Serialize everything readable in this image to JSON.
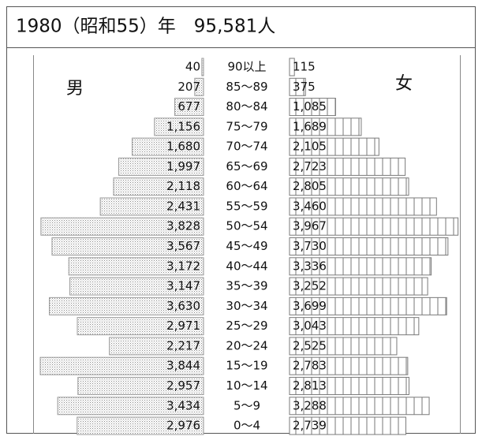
{
  "chart_data": {
    "type": "pyramid",
    "title": "1980（昭和55）年　95,581人",
    "categories": [
      "90以上",
      "85～89",
      "80～84",
      "75～79",
      "70～74",
      "65～69",
      "60～64",
      "55～59",
      "50～54",
      "45～49",
      "40～44",
      "35～39",
      "30～34",
      "25～29",
      "20～24",
      "15～19",
      "10～14",
      "5～9",
      "0～4"
    ],
    "series": [
      {
        "name": "男",
        "color": "#9a9a9a",
        "values": [
          40,
          207,
          677,
          1156,
          1680,
          1997,
          2118,
          2431,
          3828,
          3567,
          3172,
          3147,
          3630,
          2971,
          2217,
          3844,
          2957,
          3434,
          2976
        ],
        "value_labels": [
          "40",
          "207",
          "677",
          "1,156",
          "1,680",
          "1,997",
          "2,118",
          "2,431",
          "3,828",
          "3,567",
          "3,172",
          "3,147",
          "3,630",
          "2,971",
          "2,217",
          "3,844",
          "2,957",
          "3,434",
          "2,976"
        ]
      },
      {
        "name": "女",
        "color": "#7a7a7a",
        "values": [
          115,
          375,
          1085,
          1689,
          2105,
          2723,
          2805,
          3460,
          3967,
          3730,
          3336,
          3252,
          3699,
          3043,
          2525,
          2783,
          2813,
          3288,
          2739
        ],
        "value_labels": [
          "115",
          "375",
          "1,085",
          "1,689",
          "2,105",
          "2,723",
          "2,805",
          "3,460",
          "3,967",
          "3,730",
          "3,336",
          "3,252",
          "3,699",
          "3,043",
          "2,525",
          "2,783",
          "2,813",
          "3,288",
          "2,739"
        ]
      }
    ]
  }
}
